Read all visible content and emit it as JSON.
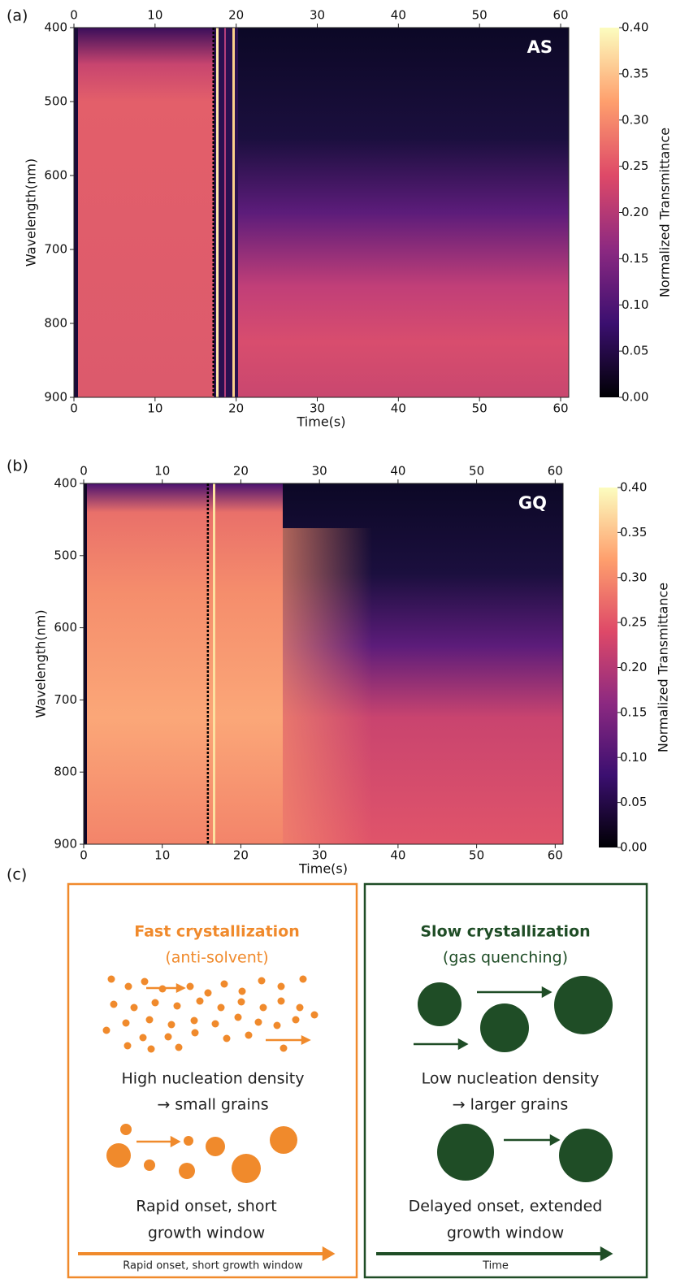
{
  "chart_data": [
    {
      "type": "heatmap",
      "panel_label": "(a)",
      "tag": "AS",
      "xlabel": "Time(s)",
      "ylabel": "Wavelength(nm)",
      "xlim": [
        0,
        61
      ],
      "xticks": [
        0,
        10,
        20,
        30,
        40,
        50,
        60
      ],
      "ylim": [
        400,
        900
      ],
      "yticks": [
        400,
        500,
        600,
        700,
        800,
        900
      ],
      "y_inverted": true,
      "colorbar_label": "Normalized Transmittance",
      "colormap": "magma",
      "clim": [
        0,
        0.4
      ],
      "cticks": [
        {
          "value": 0,
          "label": "0.00"
        },
        {
          "value": 0.05,
          "label": "0.05"
        },
        {
          "value": 0.1,
          "label": "0.10"
        },
        {
          "value": 0.15,
          "label": "0.15"
        },
        {
          "value": 0.2,
          "label": "0.20"
        },
        {
          "value": 0.25,
          "label": "0.25"
        },
        {
          "value": 0.3,
          "label": "0.30"
        },
        {
          "value": 0.35,
          "label": "0.35"
        },
        {
          "value": 0.4,
          "label": "0.40"
        }
      ],
      "marker_x": 17.2
    },
    {
      "type": "heatmap",
      "panel_label": "(b)",
      "tag": "GQ",
      "xlabel": "Time(s)",
      "ylabel": "Wavelength(nm)",
      "xlim": [
        0,
        61
      ],
      "xticks": [
        0,
        10,
        20,
        30,
        40,
        50,
        60
      ],
      "ylim": [
        400,
        900
      ],
      "yticks": [
        400,
        500,
        600,
        700,
        800,
        900
      ],
      "y_inverted": true,
      "colorbar_label": "Normalized Transmittance",
      "colormap": "magma",
      "clim": [
        0,
        0.4
      ],
      "cticks": [
        {
          "value": 0,
          "label": "0.00"
        },
        {
          "value": 0.05,
          "label": "0.05"
        },
        {
          "value": 0.1,
          "label": "0.10"
        },
        {
          "value": 0.15,
          "label": "0.15"
        },
        {
          "value": 0.2,
          "label": "0.20"
        },
        {
          "value": 0.25,
          "label": "0.25"
        },
        {
          "value": 0.3,
          "label": "0.30"
        },
        {
          "value": 0.35,
          "label": "0.35"
        },
        {
          "value": 0.4,
          "label": "0.40"
        }
      ],
      "marker_x": 15.8
    }
  ],
  "diagram": {
    "panel_label": "(c)",
    "left": {
      "title": "Fast crystallization",
      "subtitle": "(anti-solvent)",
      "caption1": "High nucleation density",
      "caption2": "→ small grains",
      "caption3": "Rapid onset, short",
      "caption4": "growth window",
      "arrow_label": "Rapid onset, short growth window"
    },
    "right": {
      "title": "Slow crystallization",
      "subtitle": "(gas quenching)",
      "caption1": "Low nucleation density",
      "caption2": "→ larger grains",
      "caption3": "Delayed onset, extended",
      "caption4": "growth window",
      "arrow_label": "Time"
    }
  }
}
